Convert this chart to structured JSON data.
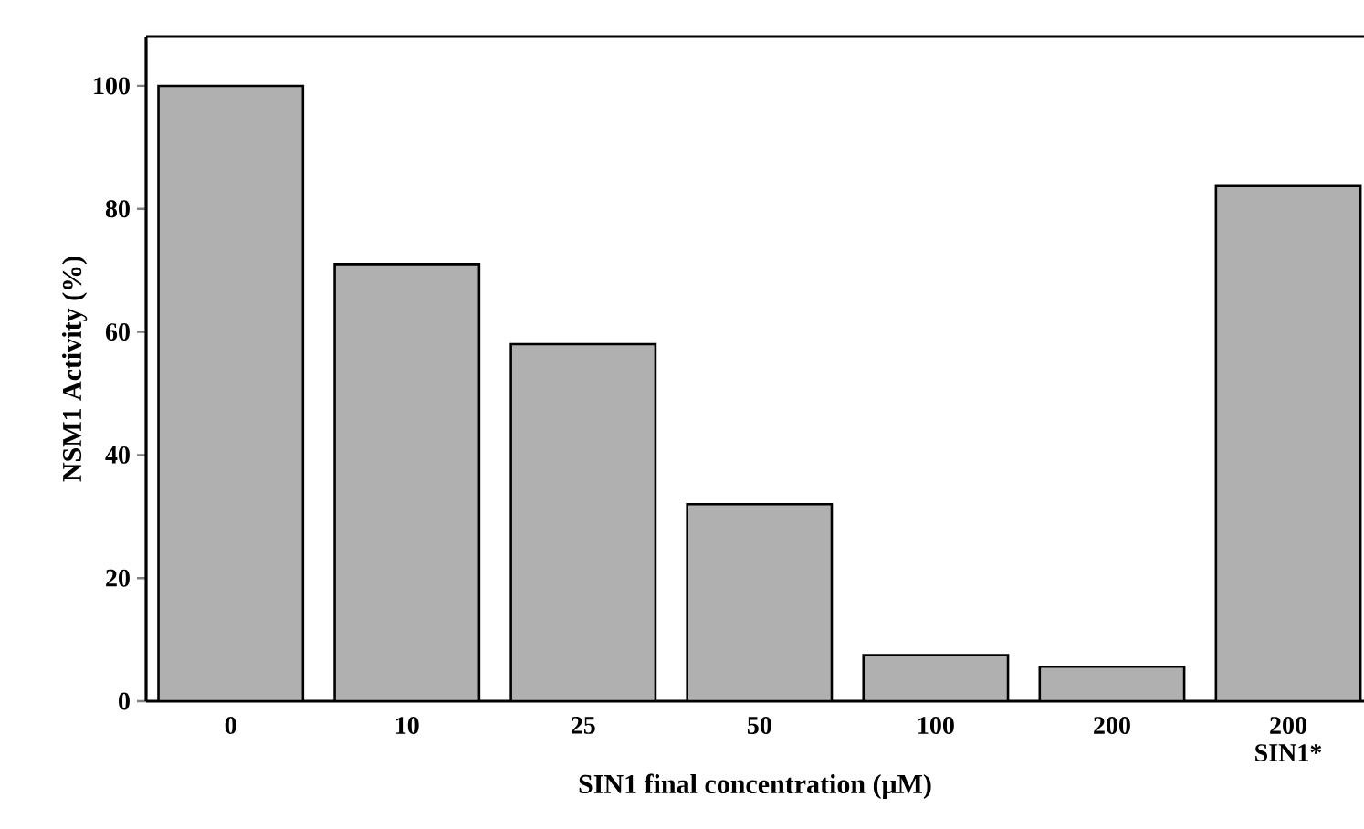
{
  "chart_data": {
    "type": "bar",
    "xlabel": "SIN1 final concentration  (μM)",
    "ylabel": "NSM1 Activity (%)",
    "categories": [
      "0",
      "10",
      "25",
      "50",
      "100",
      "200",
      "200 SIN1*"
    ],
    "values": [
      100,
      71,
      58,
      32,
      7.5,
      5.6,
      83.7
    ],
    "color": "#b0b0b0",
    "ylim": [
      0,
      108
    ],
    "yticks": [
      0,
      20,
      40,
      60,
      80,
      100
    ],
    "grid": false
  }
}
